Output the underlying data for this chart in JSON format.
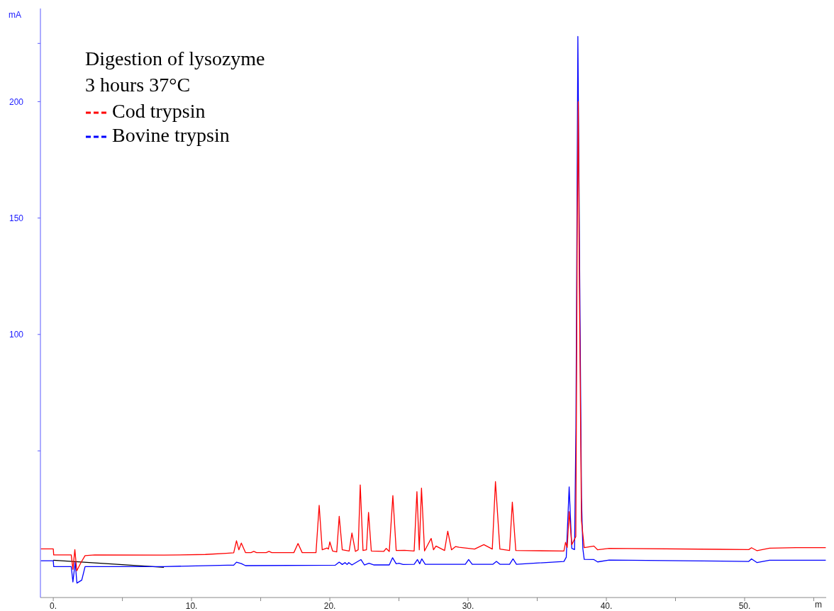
{
  "chart_data": {
    "type": "line",
    "title": "Digestion of lysozyme",
    "subtitle": "3 hours 37°C",
    "ylabel": "mA",
    "xlabel": "m",
    "legend": "top left",
    "xlim": [
      -0.93,
      55.9
    ],
    "ylim": [
      -13,
      240
    ],
    "xticks": [
      {
        "value": 0,
        "label": "0."
      },
      {
        "value": 5,
        "label": null
      },
      {
        "value": 10,
        "label": "10."
      },
      {
        "value": 15,
        "label": null
      },
      {
        "value": 20,
        "label": "20."
      },
      {
        "value": 25,
        "label": null
      },
      {
        "value": 30,
        "label": "30."
      },
      {
        "value": 35,
        "label": null
      },
      {
        "value": 40,
        "label": "40."
      },
      {
        "value": 45,
        "label": null
      },
      {
        "value": 50,
        "label": "50."
      },
      {
        "value": 55,
        "label": null
      }
    ],
    "yticks": [
      {
        "value": 50,
        "label": null
      },
      100,
      150,
      200,
      {
        "value": 225,
        "label": null
      }
    ],
    "series": [
      {
        "name": "Cod trypsin",
        "color": "#ff0000",
        "x": [
          -0.9,
          0,
          0.03,
          1.3,
          1.42,
          1.56,
          1.7,
          2.0,
          2.3,
          3,
          8,
          11,
          12.5,
          13.05,
          13.25,
          13.42,
          13.6,
          13.9,
          14.3,
          14.5,
          14.7,
          15.4,
          15.6,
          15.8,
          17.4,
          17.7,
          18.0,
          19.0,
          19.23,
          19.45,
          19.8,
          19.9,
          20.0,
          20.2,
          20.5,
          20.68,
          20.9,
          21.4,
          21.6,
          21.85,
          22.05,
          22.2,
          22.4,
          22.65,
          22.8,
          23.0,
          23.9,
          24.08,
          24.3,
          24.56,
          24.8,
          25.4,
          26.1,
          26.3,
          26.47,
          26.63,
          26.85,
          27.33,
          27.5,
          27.68,
          28.3,
          28.53,
          28.8,
          29.1,
          29.36,
          30.47,
          31.14,
          31.75,
          31.98,
          32.3,
          33.0,
          33.2,
          33.45,
          36.93,
          37.05,
          37.17,
          37.31,
          37.5,
          37.79,
          37.9,
          37.97,
          38.05,
          38.2,
          38.4,
          39.1,
          39.37,
          40.2,
          50.3,
          50.5,
          50.9,
          51.8,
          53.7,
          55.87
        ],
        "values": [
          7.9,
          7.9,
          5.3,
          5.3,
          -0.9,
          7.6,
          -1.5,
          2,
          5.0,
          5.3,
          5.2,
          5.5,
          6,
          6.2,
          11.4,
          7.5,
          10.4,
          6.3,
          6.3,
          6.8,
          6.3,
          6.3,
          6.8,
          6.3,
          6.3,
          10.2,
          6.3,
          6.3,
          26.6,
          7.5,
          8.3,
          7.8,
          10.9,
          7.0,
          6.6,
          21.9,
          7.5,
          7.0,
          14.7,
          6.8,
          7.5,
          35.4,
          7.2,
          7.5,
          23.6,
          7.0,
          6.8,
          8.1,
          6.8,
          30.8,
          7.2,
          7.3,
          7.0,
          32.5,
          7.5,
          34.0,
          7.0,
          12.4,
          7.5,
          9.1,
          7.2,
          15.5,
          7.5,
          8.9,
          8.6,
          7.8,
          9.7,
          7.8,
          36.8,
          7.8,
          7.2,
          28.0,
          7.2,
          7,
          10.7,
          8.5,
          23.9,
          9.7,
          13.2,
          150,
          200,
          120,
          20,
          8.4,
          9.1,
          7.5,
          8.1,
          7.6,
          8.4,
          7.1,
          8.2,
          8.4,
          8.4
        ]
      },
      {
        "name": "Bovine trypsin",
        "color": "#0000ff",
        "x": [
          -0.9,
          0,
          0.03,
          1.3,
          1.42,
          1.58,
          1.71,
          2.06,
          2.3,
          8,
          12.6,
          13.05,
          13.25,
          13.6,
          13.9,
          20.4,
          20.68,
          20.9,
          21.1,
          21.25,
          21.37,
          21.6,
          22.25,
          22.5,
          22.83,
          23.2,
          24.3,
          24.54,
          24.8,
          25.0,
          25.3,
          26.1,
          26.34,
          26.5,
          26.65,
          26.9,
          29.8,
          30.04,
          30.3,
          31.8,
          32.05,
          32.3,
          33.0,
          33.25,
          33.5,
          36.93,
          37.1,
          37.31,
          37.5,
          37.7,
          37.8,
          37.94,
          38.08,
          38.2,
          38.3,
          38.4,
          39.1,
          39.37,
          40.2,
          50.3,
          50.5,
          50.9,
          51.8,
          55.87
        ],
        "values": [
          2.8,
          2.8,
          0.3,
          0.3,
          -6.3,
          2.1,
          -6.8,
          -5.5,
          0.3,
          0.3,
          0.9,
          0.9,
          2.2,
          1.6,
          0.7,
          0.9,
          2.2,
          1.2,
          2.0,
          1.2,
          2.0,
          1.0,
          3.3,
          1.0,
          1.7,
          1.0,
          1.0,
          4.1,
          1.5,
          1.7,
          1.2,
          1.3,
          3.3,
          1.5,
          3.6,
          1.3,
          1.3,
          3.3,
          1.3,
          1.3,
          2.5,
          1.3,
          1.3,
          3.6,
          1.3,
          2.5,
          4.3,
          34.5,
          8.1,
          7.6,
          60,
          228,
          120,
          30,
          8,
          3.4,
          3.3,
          2.3,
          3.1,
          2.5,
          3.6,
          2.0,
          3.0,
          3.0
        ]
      },
      {
        "color": "#000000",
        "x": [
          0,
          8
        ],
        "values": [
          3,
          0
        ]
      }
    ]
  }
}
